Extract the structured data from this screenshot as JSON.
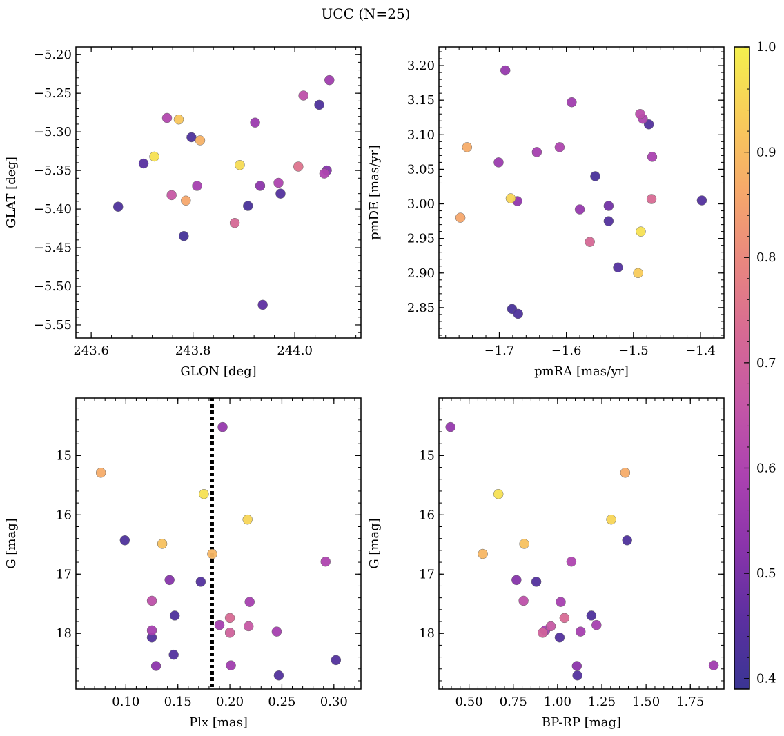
{
  "title": "UCC (N=25)",
  "colorbar": {
    "colors": [
      "#3a3594",
      "#5c2fa0",
      "#8a34ab",
      "#ac42b0",
      "#c457a6",
      "#d76a93",
      "#e9877f",
      "#f6a96a",
      "#f8cc5a",
      "#f4f04e"
    ],
    "vmin": 0.39,
    "vmax": 1.0,
    "ticks": [
      0.4,
      0.5,
      0.6,
      0.7,
      0.8,
      0.9,
      1.0
    ],
    "tick_labels": [
      "0.4",
      "0.5",
      "0.6",
      "0.7",
      "0.8",
      "0.9",
      "1.0"
    ]
  },
  "chart_data": [
    {
      "type": "scatter",
      "xlabel": "GLON [deg]",
      "ylabel": "GLAT [deg]",
      "xlim": [
        243.57,
        244.13
      ],
      "ylim": [
        -5.567,
        -5.19
      ],
      "invert_y": false,
      "xticks": [
        243.6,
        243.8,
        244.0
      ],
      "xtick_labels": [
        "243.6",
        "243.8",
        "244.0"
      ],
      "yticks": [
        -5.55,
        -5.5,
        -5.45,
        -5.4,
        -5.35,
        -5.3,
        -5.25,
        -5.2
      ],
      "ytick_labels": [
        "−5.55",
        "−5.50",
        "−5.45",
        "−5.40",
        "−5.35",
        "−5.30",
        "−5.25",
        "−5.20"
      ],
      "points": [
        {
          "x": 243.724,
          "y": -5.332,
          "c": 0.97
        },
        {
          "x": 243.772,
          "y": -5.284,
          "c": 0.92
        },
        {
          "x": 243.814,
          "y": -5.311,
          "c": 0.88
        },
        {
          "x": 243.786,
          "y": -5.389,
          "c": 0.86
        },
        {
          "x": 243.892,
          "y": -5.343,
          "c": 0.96
        },
        {
          "x": 243.749,
          "y": -5.282,
          "c": 0.61
        },
        {
          "x": 243.797,
          "y": -5.307,
          "c": 0.43
        },
        {
          "x": 243.703,
          "y": -5.341,
          "c": 0.45
        },
        {
          "x": 243.653,
          "y": -5.397,
          "c": 0.43
        },
        {
          "x": 243.758,
          "y": -5.382,
          "c": 0.67
        },
        {
          "x": 243.808,
          "y": -5.37,
          "c": 0.58
        },
        {
          "x": 243.782,
          "y": -5.435,
          "c": 0.41
        },
        {
          "x": 243.882,
          "y": -5.418,
          "c": 0.72
        },
        {
          "x": 243.908,
          "y": -5.396,
          "c": 0.42
        },
        {
          "x": 243.922,
          "y": -5.288,
          "c": 0.56
        },
        {
          "x": 243.932,
          "y": -5.37,
          "c": 0.53
        },
        {
          "x": 243.937,
          "y": -5.524,
          "c": 0.46
        },
        {
          "x": 243.968,
          "y": -5.366,
          "c": 0.6
        },
        {
          "x": 243.972,
          "y": -5.38,
          "c": 0.44
        },
        {
          "x": 244.007,
          "y": -5.345,
          "c": 0.75
        },
        {
          "x": 244.017,
          "y": -5.253,
          "c": 0.64
        },
        {
          "x": 244.048,
          "y": -5.265,
          "c": 0.43
        },
        {
          "x": 244.058,
          "y": -5.354,
          "c": 0.6
        },
        {
          "x": 244.063,
          "y": -5.35,
          "c": 0.52
        },
        {
          "x": 244.068,
          "y": -5.233,
          "c": 0.57
        }
      ]
    },
    {
      "type": "scatter",
      "xlabel": "pmRA [mas/yr]",
      "ylabel": "pmDE [mas/yr]",
      "xlim": [
        -1.79,
        -1.365
      ],
      "ylim": [
        2.806,
        3.227
      ],
      "invert_y": false,
      "xticks": [
        -1.7,
        -1.6,
        -1.5,
        -1.4
      ],
      "xtick_labels": [
        "−1.7",
        "−1.6",
        "−1.5",
        "−1.4"
      ],
      "yticks": [
        2.85,
        2.9,
        2.95,
        3.0,
        3.05,
        3.1,
        3.15,
        3.2
      ],
      "ytick_labels": [
        "2.85",
        "2.90",
        "2.95",
        "3.00",
        "3.05",
        "3.10",
        "3.15",
        "3.20"
      ],
      "points": [
        {
          "x": -1.691,
          "y": 3.193,
          "c": 0.55
        },
        {
          "x": -1.592,
          "y": 3.147,
          "c": 0.57
        },
        {
          "x": -1.49,
          "y": 3.13,
          "c": 0.63
        },
        {
          "x": -1.486,
          "y": 3.123,
          "c": 0.6
        },
        {
          "x": -1.477,
          "y": 3.115,
          "c": 0.44
        },
        {
          "x": -1.748,
          "y": 3.082,
          "c": 0.87
        },
        {
          "x": -1.61,
          "y": 3.082,
          "c": 0.6
        },
        {
          "x": -1.644,
          "y": 3.075,
          "c": 0.58
        },
        {
          "x": -1.472,
          "y": 3.068,
          "c": 0.59
        },
        {
          "x": -1.701,
          "y": 3.06,
          "c": 0.56
        },
        {
          "x": -1.557,
          "y": 3.04,
          "c": 0.42
        },
        {
          "x": -1.683,
          "y": 3.008,
          "c": 0.95
        },
        {
          "x": -1.673,
          "y": 3.004,
          "c": 0.54
        },
        {
          "x": -1.473,
          "y": 3.007,
          "c": 0.73
        },
        {
          "x": -1.398,
          "y": 3.005,
          "c": 0.44
        },
        {
          "x": -1.537,
          "y": 2.997,
          "c": 0.49
        },
        {
          "x": -1.58,
          "y": 2.992,
          "c": 0.55
        },
        {
          "x": -1.758,
          "y": 2.98,
          "c": 0.86
        },
        {
          "x": -1.537,
          "y": 2.975,
          "c": 0.44
        },
        {
          "x": -1.565,
          "y": 2.945,
          "c": 0.72
        },
        {
          "x": -1.489,
          "y": 2.96,
          "c": 0.97
        },
        {
          "x": -1.523,
          "y": 2.908,
          "c": 0.44
        },
        {
          "x": -1.493,
          "y": 2.9,
          "c": 0.93
        },
        {
          "x": -1.681,
          "y": 2.848,
          "c": 0.42
        },
        {
          "x": -1.672,
          "y": 2.841,
          "c": 0.43
        }
      ]
    },
    {
      "type": "scatter",
      "xlabel": "Plx [mas]",
      "ylabel": "G [mag]",
      "xlim": [
        0.052,
        0.326
      ],
      "ylim": [
        18.94,
        14.03
      ],
      "invert_y": true,
      "vline_x": 0.183,
      "xticks": [
        0.1,
        0.15,
        0.2,
        0.25,
        0.3
      ],
      "xtick_labels": [
        "0.10",
        "0.15",
        "0.20",
        "0.25",
        "0.30"
      ],
      "yticks": [
        15,
        16,
        17,
        18
      ],
      "ytick_labels": [
        "15",
        "16",
        "17",
        "18"
      ],
      "points": [
        {
          "x": 0.193,
          "y": 14.52,
          "c": 0.55
        },
        {
          "x": 0.076,
          "y": 15.29,
          "c": 0.87
        },
        {
          "x": 0.175,
          "y": 15.65,
          "c": 0.97
        },
        {
          "x": 0.217,
          "y": 16.08,
          "c": 0.95
        },
        {
          "x": 0.099,
          "y": 16.43,
          "c": 0.43
        },
        {
          "x": 0.135,
          "y": 16.49,
          "c": 0.91
        },
        {
          "x": 0.183,
          "y": 16.66,
          "c": 0.89
        },
        {
          "x": 0.292,
          "y": 16.79,
          "c": 0.6
        },
        {
          "x": 0.142,
          "y": 17.1,
          "c": 0.52
        },
        {
          "x": 0.172,
          "y": 17.13,
          "c": 0.44
        },
        {
          "x": 0.125,
          "y": 17.45,
          "c": 0.64
        },
        {
          "x": 0.219,
          "y": 17.47,
          "c": 0.58
        },
        {
          "x": 0.147,
          "y": 17.7,
          "c": 0.43
        },
        {
          "x": 0.2,
          "y": 17.74,
          "c": 0.73
        },
        {
          "x": 0.19,
          "y": 17.86,
          "c": 0.58
        },
        {
          "x": 0.218,
          "y": 17.88,
          "c": 0.67
        },
        {
          "x": 0.125,
          "y": 17.95,
          "c": 0.58
        },
        {
          "x": 0.245,
          "y": 17.97,
          "c": 0.58
        },
        {
          "x": 0.2,
          "y": 17.99,
          "c": 0.7
        },
        {
          "x": 0.125,
          "y": 18.07,
          "c": 0.44
        },
        {
          "x": 0.146,
          "y": 18.36,
          "c": 0.44
        },
        {
          "x": 0.302,
          "y": 18.45,
          "c": 0.44
        },
        {
          "x": 0.129,
          "y": 18.55,
          "c": 0.53
        },
        {
          "x": 0.201,
          "y": 18.54,
          "c": 0.57
        },
        {
          "x": 0.247,
          "y": 18.71,
          "c": 0.44
        }
      ]
    },
    {
      "type": "scatter",
      "xlabel": "BP-RP [mag]",
      "ylabel": "G [mag]",
      "xlim": [
        0.33,
        1.94
      ],
      "ylim": [
        18.94,
        14.03
      ],
      "invert_y": true,
      "xticks": [
        0.5,
        0.75,
        1.0,
        1.25,
        1.5,
        1.75
      ],
      "xtick_labels": [
        "0.50",
        "0.75",
        "1.00",
        "1.25",
        "1.50",
        "1.75"
      ],
      "yticks": [
        15,
        16,
        17,
        18
      ],
      "ytick_labels": [
        "15",
        "16",
        "17",
        "18"
      ],
      "points": [
        {
          "x": 0.395,
          "y": 14.52,
          "c": 0.55
        },
        {
          "x": 1.382,
          "y": 15.29,
          "c": 0.87
        },
        {
          "x": 0.666,
          "y": 15.65,
          "c": 0.97
        },
        {
          "x": 1.303,
          "y": 16.08,
          "c": 0.95
        },
        {
          "x": 1.393,
          "y": 16.43,
          "c": 0.43
        },
        {
          "x": 0.812,
          "y": 16.49,
          "c": 0.91
        },
        {
          "x": 0.578,
          "y": 16.66,
          "c": 0.89
        },
        {
          "x": 1.078,
          "y": 16.79,
          "c": 0.6
        },
        {
          "x": 0.768,
          "y": 17.1,
          "c": 0.52
        },
        {
          "x": 0.88,
          "y": 17.13,
          "c": 0.44
        },
        {
          "x": 0.808,
          "y": 17.45,
          "c": 0.64
        },
        {
          "x": 1.018,
          "y": 17.47,
          "c": 0.58
        },
        {
          "x": 1.191,
          "y": 17.7,
          "c": 0.43
        },
        {
          "x": 1.039,
          "y": 17.74,
          "c": 0.73
        },
        {
          "x": 1.22,
          "y": 17.86,
          "c": 0.58
        },
        {
          "x": 0.962,
          "y": 17.88,
          "c": 0.67
        },
        {
          "x": 0.93,
          "y": 17.95,
          "c": 0.58
        },
        {
          "x": 1.13,
          "y": 17.97,
          "c": 0.58
        },
        {
          "x": 0.916,
          "y": 17.99,
          "c": 0.7
        },
        {
          "x": 1.012,
          "y": 18.07,
          "c": 0.44
        },
        {
          "x": 1.109,
          "y": 18.55,
          "c": 0.53
        },
        {
          "x": 1.882,
          "y": 18.54,
          "c": 0.57
        },
        {
          "x": 1.112,
          "y": 18.71,
          "c": 0.44
        }
      ]
    }
  ]
}
